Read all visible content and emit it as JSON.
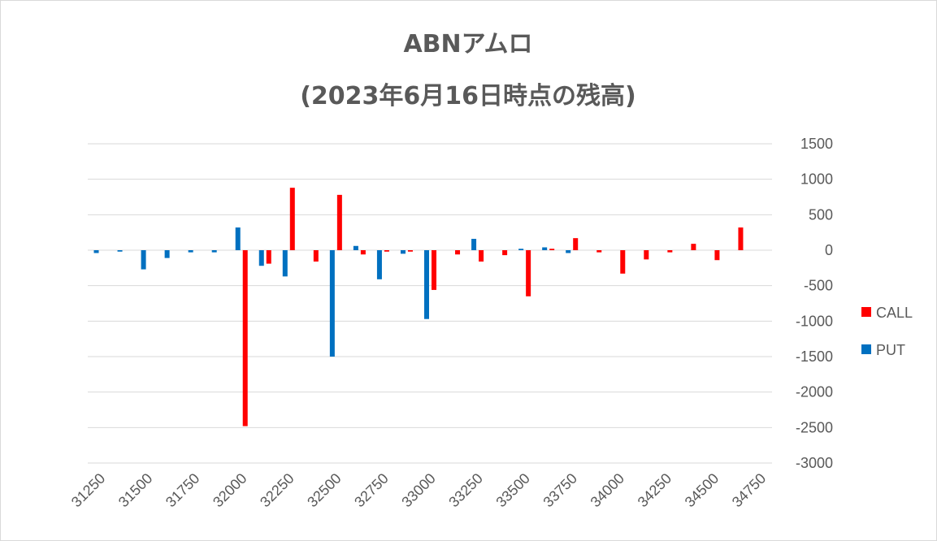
{
  "chart_data": {
    "type": "bar",
    "title": "ABNアムロ",
    "subtitle": "(2023年6月16日時点の残高)",
    "xlabel": "",
    "ylabel": "",
    "x_tick_labels": [
      "31250",
      "31500",
      "31750",
      "32000",
      "32250",
      "32500",
      "32750",
      "33000",
      "33250",
      "33500",
      "33750",
      "34000",
      "34250",
      "34500",
      "34750"
    ],
    "y_tick_labels": [
      "1500",
      "1000",
      "500",
      "0",
      "-500",
      "-1000",
      "-1500",
      "-2000",
      "-2500",
      "-3000"
    ],
    "ylim": [
      -3000,
      1500
    ],
    "x_range": [
      31250,
      34750
    ],
    "strike_step": 125,
    "grid": true,
    "legend_position": "right",
    "colors": {
      "CALL": "#ff0000",
      "PUT": "#0070c0",
      "grid": "#d9d9d9",
      "text": "#595959"
    },
    "series": [
      {
        "name": "CALL",
        "x": [
          31375,
          31500,
          31625,
          31750,
          31875,
          32000,
          32125,
          32250,
          32375,
          32500,
          32625,
          32750,
          32875,
          33000,
          33125,
          33250,
          33375,
          33500,
          33625,
          33750,
          33875,
          34000,
          34125,
          34250,
          34375,
          34500,
          34625
        ],
        "values": [
          0,
          0,
          0,
          0,
          0,
          -2480,
          -190,
          880,
          -160,
          780,
          -60,
          -20,
          -20,
          -560,
          -60,
          -160,
          -70,
          -650,
          20,
          170,
          -30,
          -330,
          -130,
          -30,
          90,
          -140,
          320
        ]
      },
      {
        "name": "PUT",
        "x": [
          31250,
          31375,
          31500,
          31625,
          31750,
          31875,
          32000,
          32125,
          32250,
          32375,
          32500,
          32625,
          32750,
          32875,
          33000,
          33125,
          33250,
          33375,
          33500,
          33625,
          33750,
          33875,
          34000,
          34125,
          34250,
          34375,
          34500,
          34625
        ],
        "values": [
          -40,
          -20,
          -270,
          -110,
          -30,
          -30,
          320,
          -220,
          -370,
          0,
          -1500,
          60,
          -410,
          -50,
          -970,
          0,
          160,
          0,
          20,
          40,
          -40,
          0,
          0,
          0,
          0,
          0,
          0,
          0
        ]
      }
    ]
  }
}
